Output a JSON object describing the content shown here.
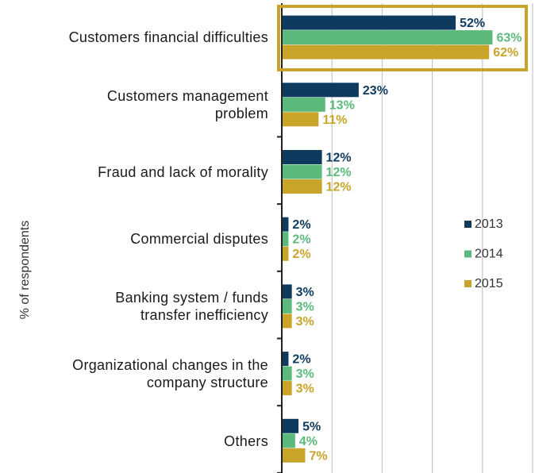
{
  "chart_data": {
    "type": "bar",
    "orientation": "horizontal",
    "y_label": "% of respondents",
    "categories": [
      "Customers financial difficulties",
      "Customers management problem",
      "Fraud and lack of morality",
      "Commercial disputes",
      "Banking system / funds transfer inefficiency",
      "Organizational changes in the company structure",
      "Others"
    ],
    "series": [
      {
        "name": "2013",
        "color": "#0e3a5e",
        "values": [
          52,
          23,
          12,
          2,
          3,
          2,
          5
        ],
        "value_labels": [
          "52%",
          "23%",
          "12%",
          "2%",
          "3%",
          "2%",
          "5%"
        ]
      },
      {
        "name": "2014",
        "color": "#5cb97c",
        "values": [
          63,
          13,
          12,
          2,
          3,
          3,
          4
        ],
        "value_labels": [
          "63%",
          "13%",
          "12%",
          "2%",
          "3%",
          "3%",
          "4%"
        ]
      },
      {
        "name": "2015",
        "color": "#c8a52a",
        "values": [
          62,
          11,
          12,
          2,
          3,
          3,
          7
        ],
        "value_labels": [
          "62%",
          "11%",
          "12%",
          "2%",
          "3%",
          "3%",
          "7%"
        ]
      }
    ],
    "xlim": [
      0,
      75
    ],
    "xticks": [
      0,
      15,
      30,
      45,
      60,
      75
    ],
    "grid": true,
    "legend": "right"
  }
}
